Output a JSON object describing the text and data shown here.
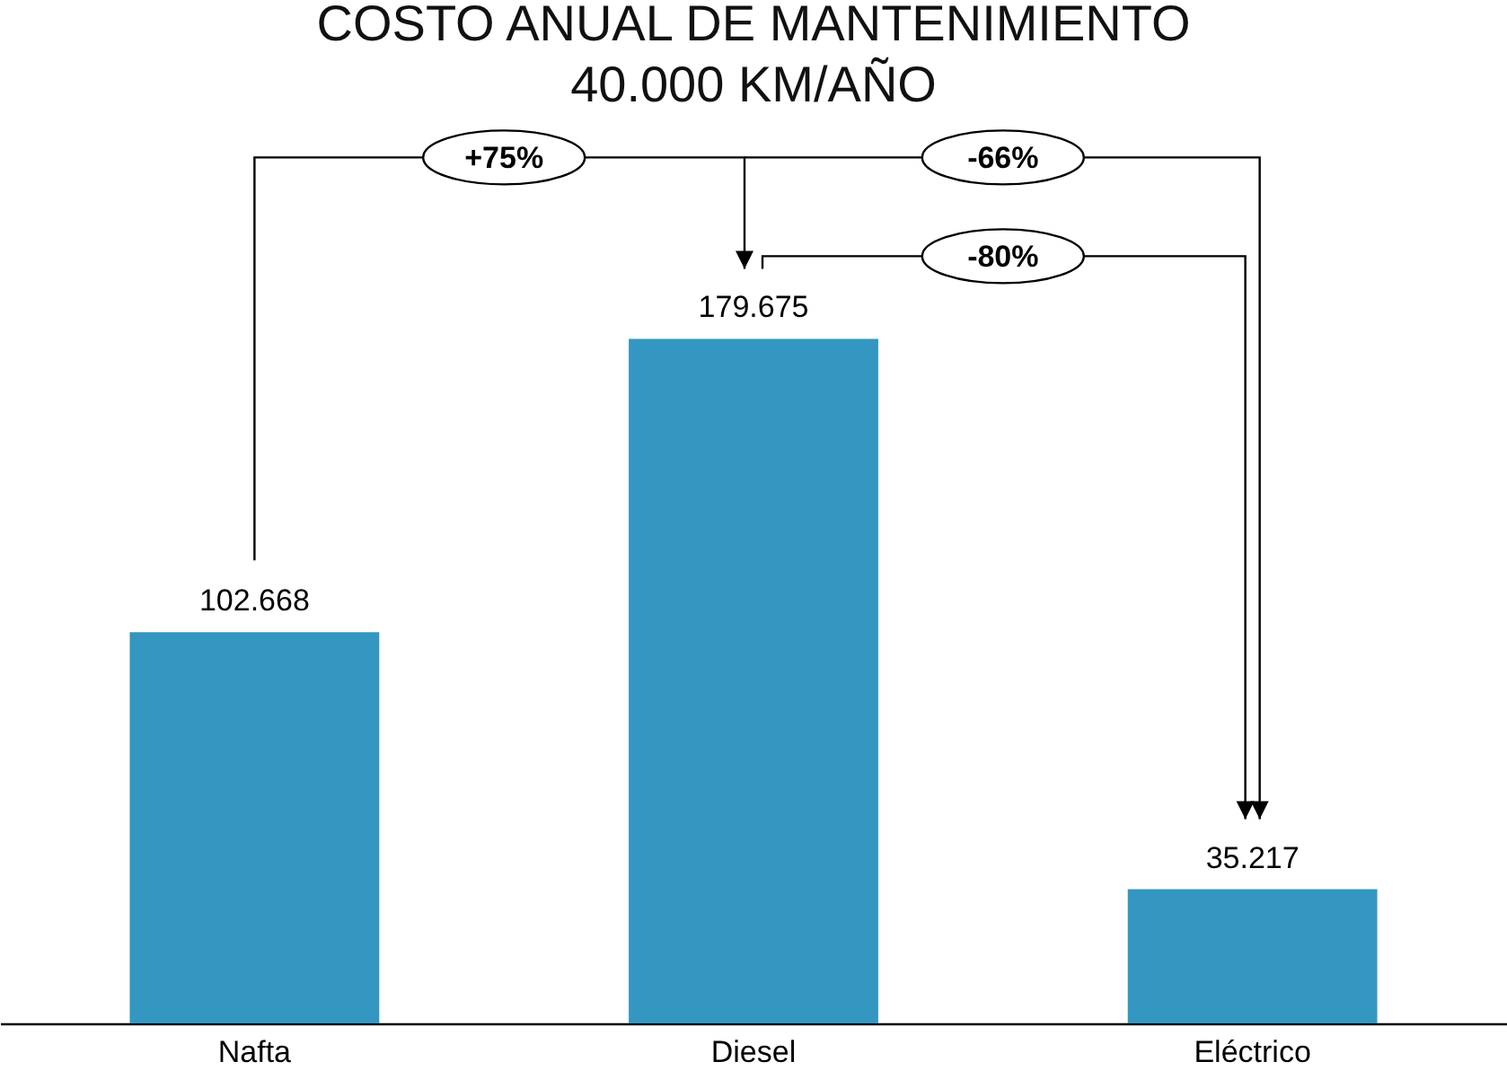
{
  "chart_data": {
    "type": "bar",
    "title": "COSTO ANUAL DE MANTENIMIENTO",
    "subtitle": "40.000 KM/AÑO",
    "categories": [
      "Nafta",
      "Diesel",
      "Eléctrico"
    ],
    "values": [
      102668,
      179675,
      35217
    ],
    "value_labels": [
      "102.668",
      "179.675",
      "35.217"
    ],
    "color": "#3497c1",
    "tick_labels": "x",
    "annotations": [
      "+75%",
      "-66%",
      "-80%"
    ]
  }
}
